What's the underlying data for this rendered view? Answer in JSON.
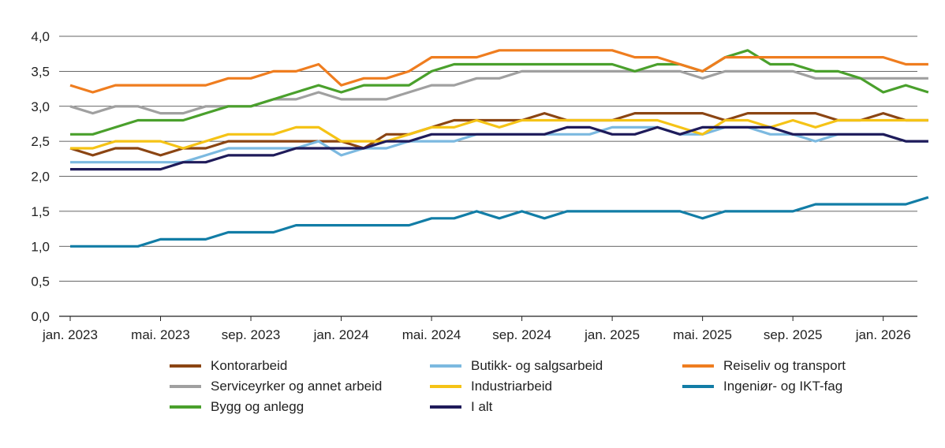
{
  "chart_data": {
    "type": "line",
    "title": "",
    "xlabel": "",
    "ylabel": "",
    "ylim": [
      0,
      4
    ],
    "yticks": [
      "0,0",
      "0,5",
      "1,0",
      "1,5",
      "2,0",
      "2,5",
      "3,0",
      "3,5",
      "4,0"
    ],
    "xticks": [
      "jan. 2023",
      "mai. 2023",
      "sep. 2023",
      "jan. 2024",
      "mai. 2024",
      "sep. 2024",
      "jan. 2025",
      "mai. 2025",
      "sep. 2025",
      "jan. 2026"
    ],
    "x_start": "2023-01",
    "x_end": "2026-03",
    "grid": "horizontal",
    "legend_position": "bottom",
    "series": [
      {
        "name": "Kontorarbeid",
        "color": "#8B4513",
        "values": [
          2.4,
          2.3,
          2.4,
          2.4,
          2.3,
          2.4,
          2.4,
          2.5,
          2.5,
          2.5,
          2.5,
          2.5,
          2.5,
          2.4,
          2.6,
          2.6,
          2.7,
          2.8,
          2.8,
          2.8,
          2.8,
          2.9,
          2.8,
          2.8,
          2.8,
          2.9,
          2.9,
          2.9,
          2.9,
          2.8,
          2.9,
          2.9,
          2.9,
          2.9,
          2.8,
          2.8,
          2.9,
          2.8,
          2.8
        ]
      },
      {
        "name": "Serviceyrker og annet arbeid",
        "color": "#A0A0A0",
        "values": [
          3.0,
          2.9,
          3.0,
          3.0,
          2.9,
          2.9,
          3.0,
          3.0,
          3.0,
          3.1,
          3.1,
          3.2,
          3.1,
          3.1,
          3.1,
          3.2,
          3.3,
          3.3,
          3.4,
          3.4,
          3.5,
          3.5,
          3.5,
          3.5,
          3.5,
          3.5,
          3.5,
          3.5,
          3.4,
          3.5,
          3.5,
          3.5,
          3.5,
          3.4,
          3.4,
          3.4,
          3.4,
          3.4,
          3.4
        ]
      },
      {
        "name": "Bygg og anlegg",
        "color": "#4AA02C",
        "values": [
          2.6,
          2.6,
          2.7,
          2.8,
          2.8,
          2.8,
          2.9,
          3.0,
          3.0,
          3.1,
          3.2,
          3.3,
          3.2,
          3.3,
          3.3,
          3.3,
          3.5,
          3.6,
          3.6,
          3.6,
          3.6,
          3.6,
          3.6,
          3.6,
          3.6,
          3.5,
          3.6,
          3.6,
          3.5,
          3.7,
          3.8,
          3.6,
          3.6,
          3.5,
          3.5,
          3.4,
          3.2,
          3.3,
          3.2
        ]
      },
      {
        "name": "Butikk- og salgsarbeid",
        "color": "#7CB9E0",
        "values": [
          2.2,
          2.2,
          2.2,
          2.2,
          2.2,
          2.2,
          2.3,
          2.4,
          2.4,
          2.4,
          2.4,
          2.5,
          2.3,
          2.4,
          2.4,
          2.5,
          2.5,
          2.5,
          2.6,
          2.6,
          2.6,
          2.6,
          2.6,
          2.6,
          2.7,
          2.7,
          2.7,
          2.6,
          2.6,
          2.7,
          2.7,
          2.6,
          2.6,
          2.5,
          2.6,
          2.6,
          2.6,
          2.5,
          2.5
        ]
      },
      {
        "name": "Industriarbeid",
        "color": "#F5C316",
        "values": [
          2.4,
          2.4,
          2.5,
          2.5,
          2.5,
          2.4,
          2.5,
          2.6,
          2.6,
          2.6,
          2.7,
          2.7,
          2.5,
          2.5,
          2.5,
          2.6,
          2.7,
          2.7,
          2.8,
          2.7,
          2.8,
          2.8,
          2.8,
          2.8,
          2.8,
          2.8,
          2.8,
          2.7,
          2.6,
          2.8,
          2.8,
          2.7,
          2.8,
          2.7,
          2.8,
          2.8,
          2.8,
          2.8,
          2.8
        ]
      },
      {
        "name": "I alt",
        "color": "#1F1B5A",
        "values": [
          2.1,
          2.1,
          2.1,
          2.1,
          2.1,
          2.2,
          2.2,
          2.3,
          2.3,
          2.3,
          2.4,
          2.4,
          2.4,
          2.4,
          2.5,
          2.5,
          2.6,
          2.6,
          2.6,
          2.6,
          2.6,
          2.6,
          2.7,
          2.7,
          2.6,
          2.6,
          2.7,
          2.6,
          2.7,
          2.7,
          2.7,
          2.7,
          2.6,
          2.6,
          2.6,
          2.6,
          2.6,
          2.5,
          2.5
        ]
      },
      {
        "name": "Reiseliv og transport",
        "color": "#EF7D1F",
        "values": [
          3.3,
          3.2,
          3.3,
          3.3,
          3.3,
          3.3,
          3.3,
          3.4,
          3.4,
          3.5,
          3.5,
          3.6,
          3.3,
          3.4,
          3.4,
          3.5,
          3.7,
          3.7,
          3.7,
          3.8,
          3.8,
          3.8,
          3.8,
          3.8,
          3.8,
          3.7,
          3.7,
          3.6,
          3.5,
          3.7,
          3.7,
          3.7,
          3.7,
          3.7,
          3.7,
          3.7,
          3.7,
          3.6,
          3.6
        ]
      },
      {
        "name": "Ingeniør- og IKT-fag",
        "color": "#127DA6",
        "values": [
          1.0,
          1.0,
          1.0,
          1.0,
          1.1,
          1.1,
          1.1,
          1.2,
          1.2,
          1.2,
          1.3,
          1.3,
          1.3,
          1.3,
          1.3,
          1.3,
          1.4,
          1.4,
          1.5,
          1.4,
          1.5,
          1.4,
          1.5,
          1.5,
          1.5,
          1.5,
          1.5,
          1.5,
          1.4,
          1.5,
          1.5,
          1.5,
          1.5,
          1.6,
          1.6,
          1.6,
          1.6,
          1.6,
          1.7
        ]
      }
    ]
  }
}
